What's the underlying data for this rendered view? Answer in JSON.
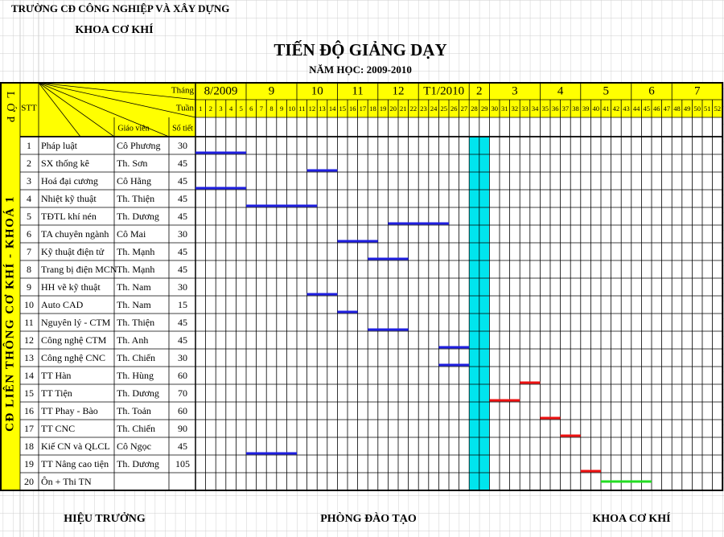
{
  "header": {
    "school": "TRƯỜNG CĐ CÔNG NGHIỆP VÀ XÂY DỰNG",
    "department": "KHOA CƠ KHÍ",
    "title": "TIẾN ĐỘ GIẢNG DẠY",
    "year": "NĂM HỌC: 2009-2010"
  },
  "table": {
    "lop": "LỚP",
    "stt": "STT",
    "month_label": "Tháng",
    "week_label": "Tuần",
    "teacher_label": "Giáo viên",
    "hours_label": "Số tiết",
    "class_name": "CĐ LIÊN THÔNG CƠ KHÍ - KHOÁ 1",
    "months": [
      {
        "label": "8/2009",
        "start": 1,
        "end": 5
      },
      {
        "label": "9",
        "start": 6,
        "end": 10
      },
      {
        "label": "10",
        "start": 11,
        "end": 14
      },
      {
        "label": "11",
        "start": 15,
        "end": 18
      },
      {
        "label": "12",
        "start": 19,
        "end": 22
      },
      {
        "label": "T1/2010",
        "start": 23,
        "end": 27
      },
      {
        "label": "2",
        "start": 28,
        "end": 29
      },
      {
        "label": "3",
        "start": 30,
        "end": 34
      },
      {
        "label": "4",
        "start": 35,
        "end": 38
      },
      {
        "label": "5",
        "start": 39,
        "end": 43
      },
      {
        "label": "6",
        "start": 44,
        "end": 47
      },
      {
        "label": "7",
        "start": 48,
        "end": 52
      }
    ],
    "weeks": [
      1,
      2,
      3,
      4,
      5,
      6,
      7,
      8,
      9,
      10,
      11,
      12,
      13,
      14,
      15,
      16,
      17,
      18,
      19,
      20,
      21,
      22,
      23,
      24,
      25,
      26,
      27,
      28,
      29,
      30,
      31,
      32,
      33,
      34,
      35,
      36,
      37,
      38,
      39,
      40,
      41,
      42,
      43,
      44,
      45,
      46,
      47,
      48,
      49,
      50,
      51,
      52
    ],
    "holiday": {
      "start": 28,
      "end": 29,
      "color": "#00e5ee"
    },
    "rows": [
      {
        "stt": 1,
        "subject": "Pháp luật",
        "teacher": "Cô Phương",
        "hours": 30,
        "bar": {
          "start": 1,
          "end": 5,
          "color": "#1f1fe0"
        }
      },
      {
        "stt": 2,
        "subject": "SX thống kê",
        "teacher": "Th. Sơn",
        "hours": 45,
        "bar": {
          "start": 12,
          "end": 14,
          "color": "#1f1fe0"
        }
      },
      {
        "stt": 3,
        "subject": "Hoá đại cương",
        "teacher": "Cô Hằng",
        "hours": 45,
        "bar": {
          "start": 1,
          "end": 5,
          "color": "#1f1fe0"
        }
      },
      {
        "stt": 4,
        "subject": "Nhiệt kỹ thuật",
        "teacher": "Th. Thiện",
        "hours": 45,
        "bar": {
          "start": 6,
          "end": 12,
          "color": "#1f1fe0"
        }
      },
      {
        "stt": 5,
        "subject": "TĐTL khí nén",
        "teacher": "Th. Dương",
        "hours": 45,
        "bar": {
          "start": 20,
          "end": 25,
          "color": "#1f1fe0"
        }
      },
      {
        "stt": 6,
        "subject": "TA chuyên ngành",
        "teacher": "Cô Mai",
        "hours": 30,
        "bar": {
          "start": 15,
          "end": 18,
          "color": "#1f1fe0"
        }
      },
      {
        "stt": 7,
        "subject": "Kỹ thuật điện tử",
        "teacher": "Th. Mạnh",
        "hours": 45,
        "bar": {
          "start": 18,
          "end": 21,
          "color": "#1f1fe0"
        }
      },
      {
        "stt": 8,
        "subject": "Trang bị điện MCN",
        "teacher": "Th. Mạnh",
        "hours": 45
      },
      {
        "stt": 9,
        "subject": "HH vẽ kỹ thuật",
        "teacher": "Th. Nam",
        "hours": 30,
        "bar": {
          "start": 12,
          "end": 14,
          "color": "#1f1fe0"
        }
      },
      {
        "stt": 10,
        "subject": "Auto CAD",
        "teacher": "Th. Nam",
        "hours": 15,
        "bar": {
          "start": 15,
          "end": 16,
          "color": "#1f1fe0"
        }
      },
      {
        "stt": 11,
        "subject": "Nguyên lý - CTM",
        "teacher": "Th. Thiện",
        "hours": 45,
        "bar": {
          "start": 18,
          "end": 21,
          "color": "#1f1fe0"
        }
      },
      {
        "stt": 12,
        "subject": "Công nghệ CTM",
        "teacher": "Th. Anh",
        "hours": 45,
        "bar": {
          "start": 25,
          "end": 27,
          "color": "#1f1fe0"
        }
      },
      {
        "stt": 13,
        "subject": "Công nghệ CNC",
        "teacher": "Th. Chiến",
        "hours": 30,
        "bar": {
          "start": 25,
          "end": 27,
          "color": "#1f1fe0"
        }
      },
      {
        "stt": 14,
        "subject": "TT Hàn",
        "teacher": "Th. Hùng",
        "hours": 60,
        "bar": {
          "start": 33,
          "end": 34,
          "color": "#ee1111"
        }
      },
      {
        "stt": 15,
        "subject": "TT Tiện",
        "teacher": "Th. Dương",
        "hours": 70,
        "bar": {
          "start": 30,
          "end": 32,
          "color": "#ee1111"
        }
      },
      {
        "stt": 16,
        "subject": "TT Phay - Bào",
        "teacher": "Th. Toản",
        "hours": 60,
        "bar": {
          "start": 35,
          "end": 36,
          "color": "#ee1111"
        }
      },
      {
        "stt": 17,
        "subject": "TT CNC",
        "teacher": "Th. Chiến",
        "hours": 90,
        "bar": {
          "start": 37,
          "end": 38,
          "color": "#ee1111"
        }
      },
      {
        "stt": 18,
        "subject": "Kiế CN và QLCL",
        "teacher": "Cô Ngọc",
        "hours": 45,
        "bar": {
          "start": 6,
          "end": 10,
          "color": "#1f1fe0"
        }
      },
      {
        "stt": 19,
        "subject": "TT Nâng cao tiện",
        "teacher": "Th. Dương",
        "hours": 105,
        "bar": {
          "start": 39,
          "end": 40,
          "color": "#ee1111"
        }
      },
      {
        "stt": 20,
        "subject": "Ôn + Thi TN",
        "bar": {
          "start": 41,
          "end": 45,
          "color": "#22dd22"
        }
      }
    ]
  },
  "footer": {
    "left": "HIỆU TRƯỞNG",
    "center": "PHÒNG ĐÀO TẠO",
    "right": "KHOA CƠ KHÍ"
  }
}
